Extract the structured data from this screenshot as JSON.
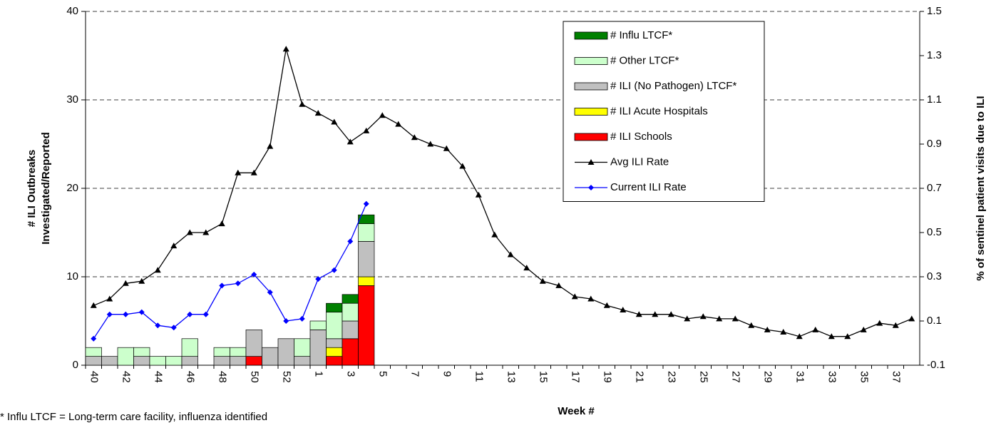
{
  "chart_data": {
    "type": "bar",
    "stacked": true,
    "xlabel": "Week #",
    "ylabel": [
      "# ILI Outbreaks",
      "Investigated/Reported"
    ],
    "y2label": "% of sentinel patient visits due to ILI",
    "footnote": "* Influ LTCF = Long-term care facility, influenza identified",
    "categories": [
      "40",
      null,
      "42",
      null,
      "44",
      null,
      "46",
      null,
      "48",
      null,
      "50",
      null,
      "52",
      null,
      "1",
      null,
      "3",
      null,
      "5",
      null,
      "7",
      null,
      "9",
      null,
      "11",
      null,
      "13",
      null,
      "15",
      null,
      "17",
      null,
      "19",
      null,
      "21",
      null,
      "23",
      null,
      "25",
      null,
      "27",
      null,
      "29",
      null,
      "31",
      null,
      "33",
      null,
      "35",
      null,
      "37",
      null
    ],
    "ylim": [
      0,
      40
    ],
    "yticks": [
      0,
      10,
      20,
      30,
      40
    ],
    "y2lim": [
      -0.1,
      1.5
    ],
    "y2ticks": [
      -0.1,
      0.1,
      0.3,
      0.5,
      0.7,
      0.9,
      1.1,
      1.3,
      1.5
    ],
    "grid": true,
    "legend": "upper right",
    "series": [
      {
        "name": "# Influ LTCF*",
        "type": "bar",
        "color": "#008000",
        "values": [
          0,
          0,
          0,
          0,
          0,
          0,
          0,
          0,
          0,
          0,
          0,
          0,
          0,
          0,
          0,
          1,
          1,
          1,
          null,
          null,
          null,
          null,
          null,
          null,
          null,
          null,
          null,
          null,
          null,
          null,
          null,
          null,
          null,
          null,
          null,
          null,
          null,
          null,
          null,
          null,
          null,
          null,
          null,
          null,
          null,
          null,
          null,
          null,
          null,
          null,
          null,
          null
        ]
      },
      {
        "name": "# Other LTCF*",
        "type": "bar",
        "color": "#ccffcc",
        "values": [
          1,
          0,
          2,
          1,
          1,
          1,
          2,
          0,
          1,
          1,
          0,
          0,
          0,
          2,
          1,
          3,
          2,
          2,
          null,
          null,
          null,
          null,
          null,
          null,
          null,
          null,
          null,
          null,
          null,
          null,
          null,
          null,
          null,
          null,
          null,
          null,
          null,
          null,
          null,
          null,
          null,
          null,
          null,
          null,
          null,
          null,
          null,
          null,
          null,
          null,
          null,
          null
        ]
      },
      {
        "name": "# ILI (No Pathogen) LTCF*",
        "type": "bar",
        "color": "#c0c0c0",
        "values": [
          1,
          1,
          0,
          1,
          0,
          0,
          1,
          0,
          1,
          1,
          3,
          2,
          3,
          1,
          4,
          1,
          2,
          4,
          null,
          null,
          null,
          null,
          null,
          null,
          null,
          null,
          null,
          null,
          null,
          null,
          null,
          null,
          null,
          null,
          null,
          null,
          null,
          null,
          null,
          null,
          null,
          null,
          null,
          null,
          null,
          null,
          null,
          null,
          null,
          null,
          null,
          null
        ]
      },
      {
        "name": "# ILI Acute Hospitals",
        "type": "bar",
        "color": "#ffff00",
        "values": [
          0,
          0,
          0,
          0,
          0,
          0,
          0,
          0,
          0,
          0,
          0,
          0,
          0,
          0,
          0,
          1,
          0,
          1,
          null,
          null,
          null,
          null,
          null,
          null,
          null,
          null,
          null,
          null,
          null,
          null,
          null,
          null,
          null,
          null,
          null,
          null,
          null,
          null,
          null,
          null,
          null,
          null,
          null,
          null,
          null,
          null,
          null,
          null,
          null,
          null,
          null,
          null
        ]
      },
      {
        "name": "# ILI Schools",
        "type": "bar",
        "color": "#ff0000",
        "values": [
          0,
          0,
          0,
          0,
          0,
          0,
          0,
          0,
          0,
          0,
          1,
          0,
          0,
          0,
          0,
          1,
          3,
          9,
          null,
          null,
          null,
          null,
          null,
          null,
          null,
          null,
          null,
          null,
          null,
          null,
          null,
          null,
          null,
          null,
          null,
          null,
          null,
          null,
          null,
          null,
          null,
          null,
          null,
          null,
          null,
          null,
          null,
          null,
          null,
          null,
          null,
          null
        ]
      },
      {
        "name": "Avg ILI Rate",
        "type": "line",
        "axis": "y2",
        "marker": "triangle",
        "color": "#000000",
        "values": [
          0.17,
          0.2,
          0.27,
          0.28,
          0.33,
          0.44,
          0.5,
          0.5,
          0.54,
          0.77,
          0.77,
          0.89,
          1.33,
          1.08,
          1.04,
          1.0,
          0.91,
          0.96,
          1.03,
          0.99,
          0.93,
          0.9,
          0.88,
          0.8,
          0.67,
          0.49,
          0.4,
          0.34,
          0.28,
          0.26,
          0.21,
          0.2,
          0.17,
          0.15,
          0.13,
          0.13,
          0.13,
          0.11,
          0.12,
          0.11,
          0.11,
          0.08,
          0.06,
          0.05,
          0.03,
          0.06,
          0.03,
          0.03,
          0.06,
          0.09,
          0.08,
          0.11
        ]
      },
      {
        "name": "Current ILI Rate",
        "type": "line",
        "axis": "y2",
        "marker": "diamond",
        "color": "#0000ff",
        "values": [
          0.02,
          0.13,
          0.13,
          0.14,
          0.08,
          0.07,
          0.13,
          0.13,
          0.26,
          0.27,
          0.31,
          0.23,
          0.1,
          0.11,
          0.29,
          0.33,
          0.46,
          0.63,
          null,
          null,
          null,
          null,
          null,
          null,
          null,
          null,
          null,
          null,
          null,
          null,
          null,
          null,
          null,
          null,
          null,
          null,
          null,
          null,
          null,
          null,
          null,
          null,
          null,
          null,
          null,
          null,
          null,
          null,
          null,
          null,
          null,
          null
        ]
      }
    ]
  }
}
